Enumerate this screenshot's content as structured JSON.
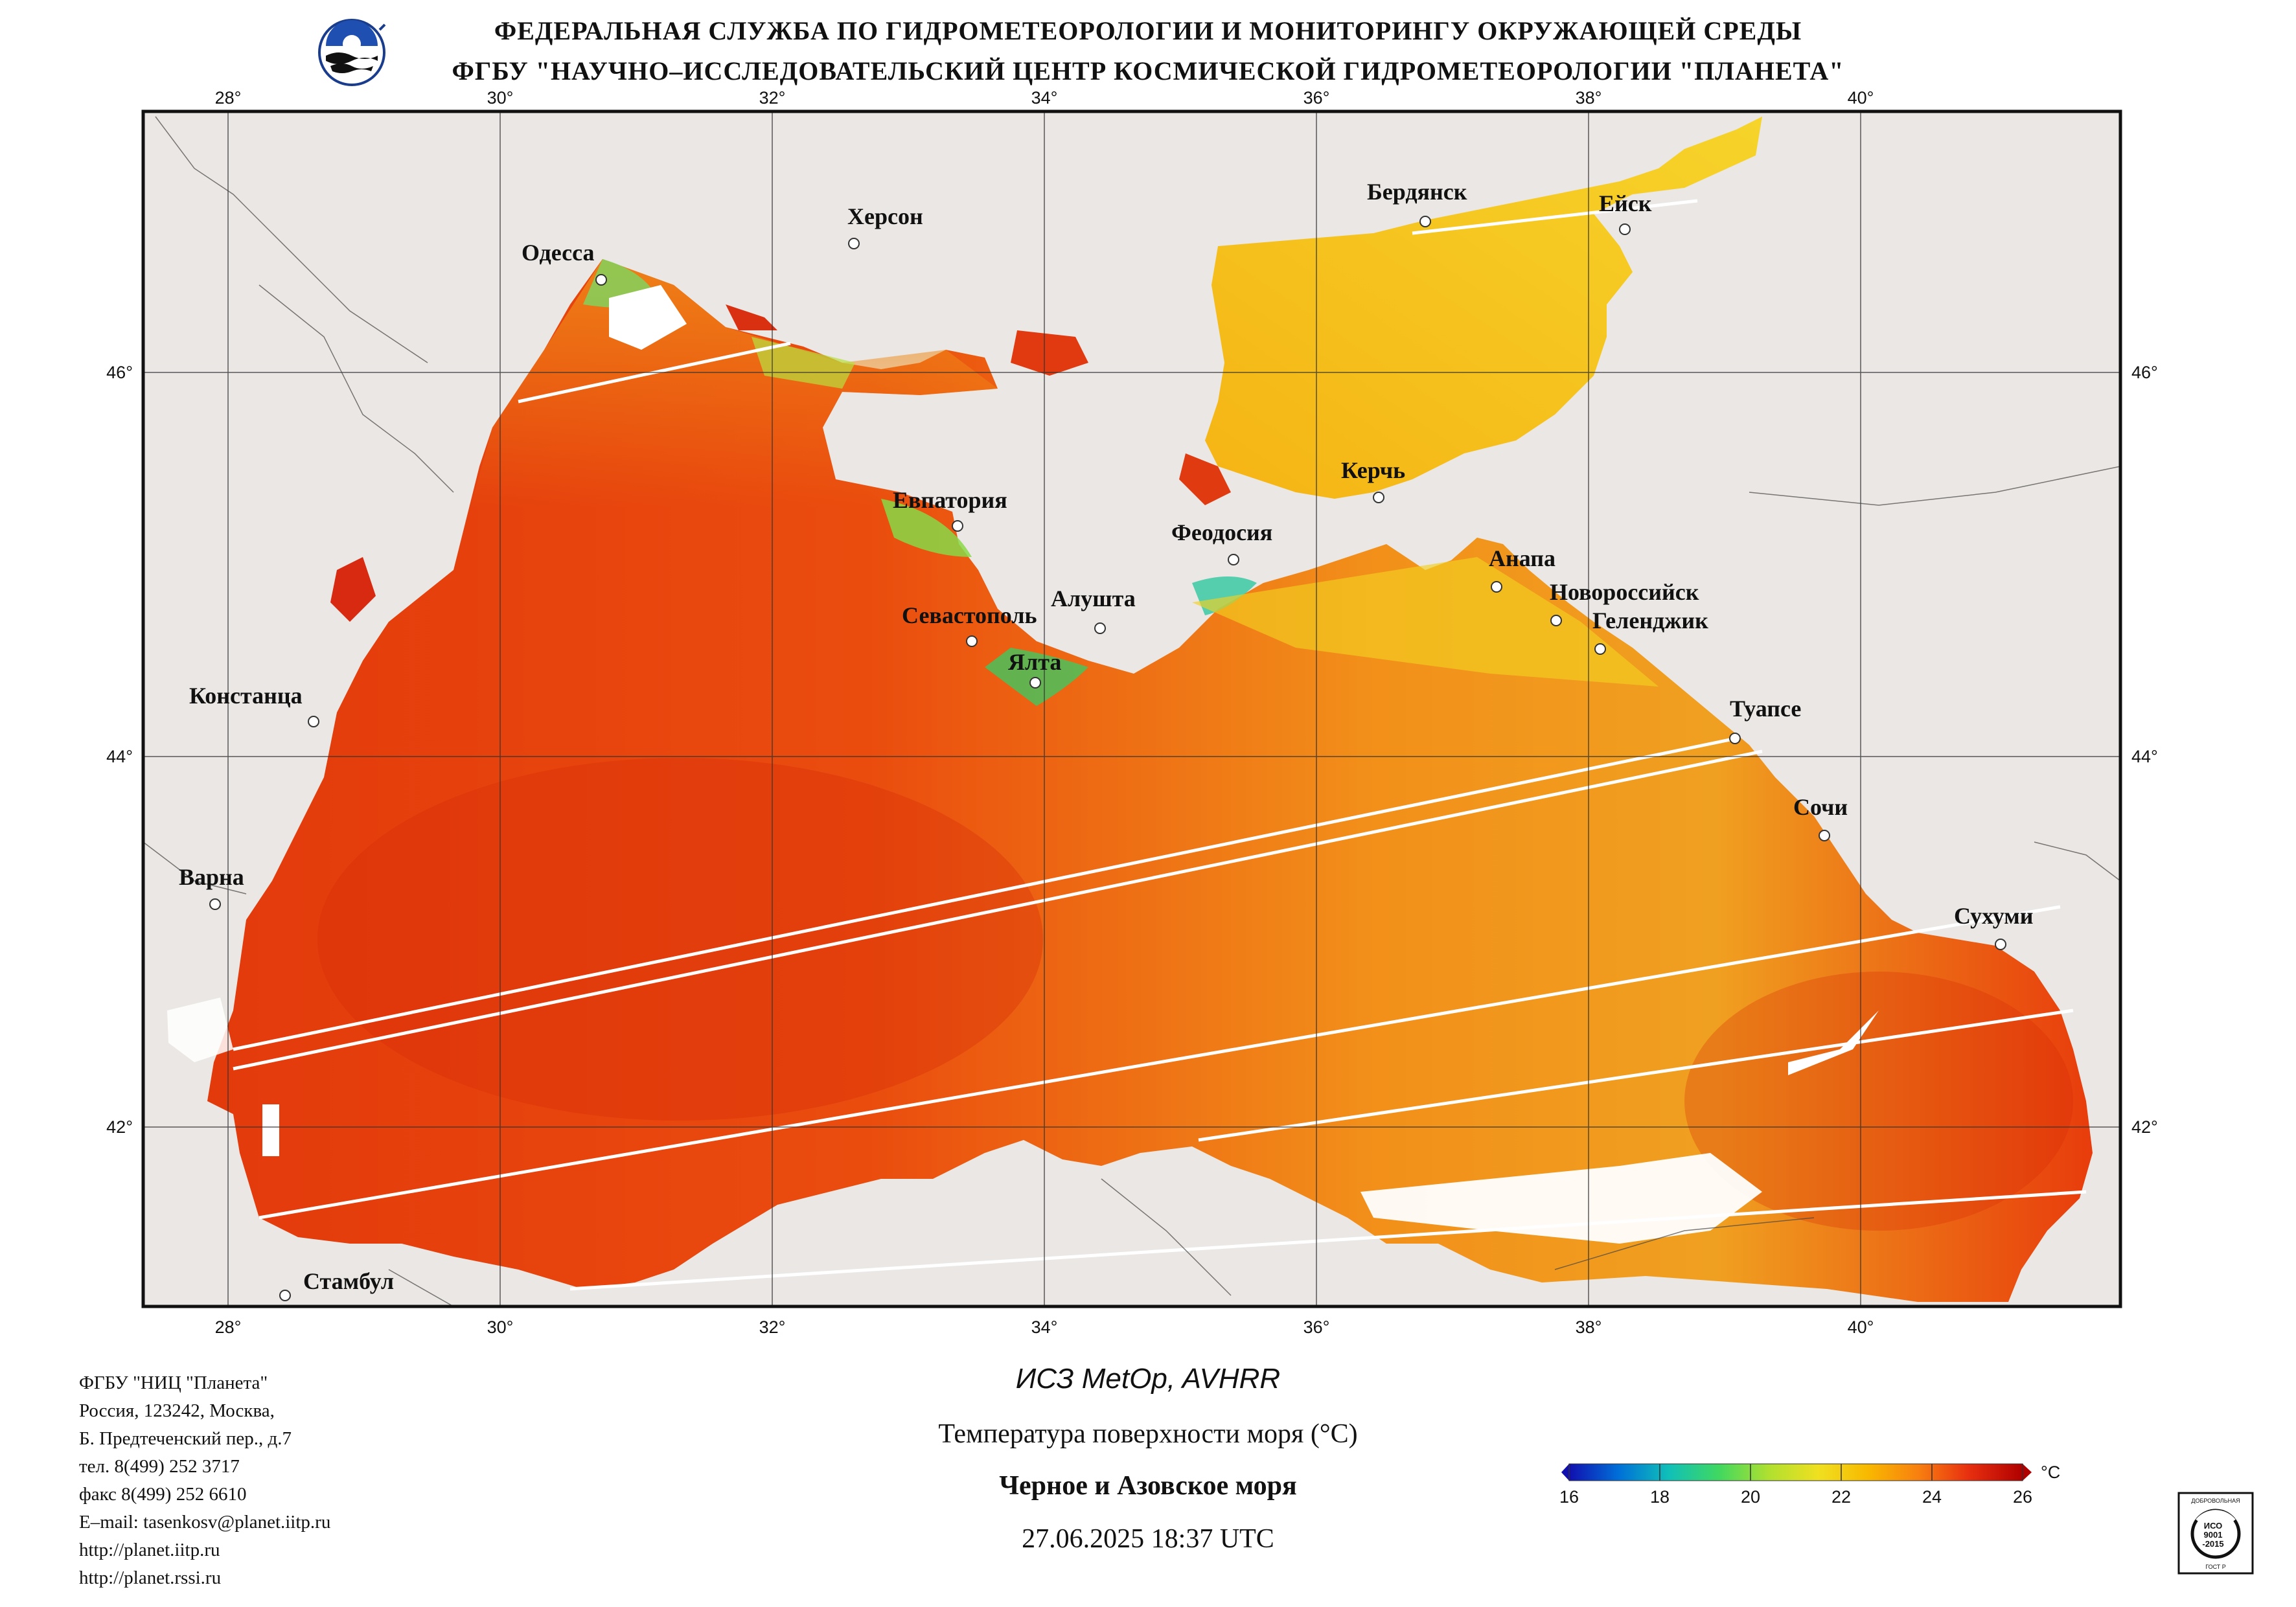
{
  "header": {
    "line1": "ФЕДЕРАЛЬНАЯ СЛУЖБА ПО ГИДРОМЕТЕОРОЛОГИИ И МОНИТОРИНГУ ОКРУЖАЮЩЕЙ СРЕДЫ",
    "line2": "ФГБУ \"НАУЧНО–ИССЛЕДОВАТЕЛЬСКИЙ ЦЕНТР КОСМИЧЕСКОЙ ГИДРОМЕТЕОРОЛОГИИ \"ПЛАНЕТА\""
  },
  "map": {
    "lon_labels": [
      "28°",
      "30°",
      "32°",
      "34°",
      "36°",
      "38°",
      "40°"
    ],
    "lat_labels": [
      "46°",
      "44°",
      "42°"
    ],
    "cities": [
      {
        "name": "Одесса"
      },
      {
        "name": "Херсон"
      },
      {
        "name": "Бердянск"
      },
      {
        "name": "Ейск"
      },
      {
        "name": "Евпатория"
      },
      {
        "name": "Керчь"
      },
      {
        "name": "Феодосия"
      },
      {
        "name": "Анапа"
      },
      {
        "name": "Новороссийск"
      },
      {
        "name": "Геленджик"
      },
      {
        "name": "Севастополь"
      },
      {
        "name": "Алушта"
      },
      {
        "name": "Ялта"
      },
      {
        "name": "Констанца"
      },
      {
        "name": "Туапсе"
      },
      {
        "name": "Сочи"
      },
      {
        "name": "Варна"
      },
      {
        "name": "Сухуми"
      },
      {
        "name": "Стамбул"
      }
    ]
  },
  "footer_left": {
    "org": "ФГБУ \"НИЦ \"Планета\"",
    "addr1": "Россия, 123242, Москва,",
    "addr2": "Б. Предтеченский пер., д.7",
    "phone": "тел. 8(499) 252 3717",
    "fax": "факс 8(499) 252 6610",
    "email": "E–mail: tasenkosv@planet.iitp.ru",
    "url1": "http://planet.iitp.ru",
    "url2": "http://planet.rssi.ru"
  },
  "caption": {
    "satellite": "ИСЗ MetOp, AVHRR",
    "product": "Температура поверхности моря (°С)",
    "region": "Черное и Азовское моря",
    "datetime": "27.06.2025 18:37 UTC"
  },
  "colorbar": {
    "unit": "°C",
    "ticks": [
      "16",
      "18",
      "20",
      "22",
      "24",
      "26"
    ],
    "colors": [
      "#1010b0",
      "#0090e0",
      "#10d0a0",
      "#60e040",
      "#d8e820",
      "#f8c800",
      "#f89810",
      "#f05010",
      "#e01808",
      "#b00000"
    ]
  },
  "iso_badge": {
    "top": "ДОБРОВОЛЬНАЯ",
    "mid1": "ИСО",
    "mid2": "9001",
    "mid3": "-2015",
    "bottom": "ГОСТ Р"
  }
}
